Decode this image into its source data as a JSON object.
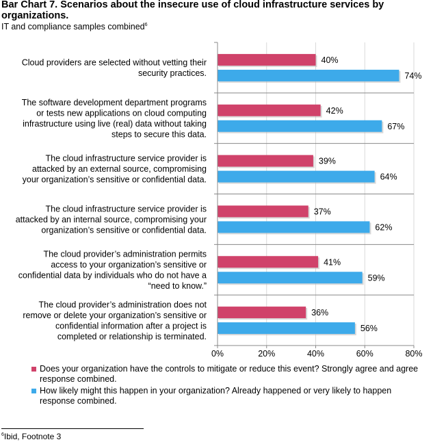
{
  "header": {
    "title": "Bar Chart 7. Scenarios about the insecure use of cloud infrastructure services by organizations.",
    "subtitle": "IT and compliance samples combined",
    "subtitle_note": "6"
  },
  "footnote": {
    "marker": "6",
    "text": "Ibid, Footnote 3"
  },
  "colors": {
    "series1": "#d0426a",
    "series2": "#3daaea"
  },
  "chart_data": {
    "type": "bar",
    "orientation": "horizontal",
    "title": "Bar Chart 7. Scenarios about the insecure use of cloud infrastructure services by organizations.",
    "subtitle": "IT and compliance samples combined",
    "categories": [
      [
        "Cloud providers are selected without vetting their",
        "security practices."
      ],
      [
        "The software development department programs",
        "or tests new applications on cloud computing",
        "infrastructure using live (real) data without taking",
        "steps to secure this data."
      ],
      [
        "The cloud infrastructure service provider is",
        "attacked by an external source, compromising",
        "your organization’s sensitive or confidential data."
      ],
      [
        "The cloud infrastructure service provider is",
        "attacked by an internal source, compromising your",
        "organization’s sensitive or confidential data."
      ],
      [
        "The cloud provider’s administration permits",
        "access to your organization’s sensitive or",
        "confidential data by individuals who do not have a",
        "“need to know.”"
      ],
      [
        "The cloud provider’s administration does not",
        "remove or delete your organization’s sensitive or",
        "confidential information after a project is",
        "completed or relationship is terminated."
      ]
    ],
    "series": [
      {
        "name": "Does your organization have the controls to mitigate or reduce this event? Strongly agree and agree response combined.",
        "values": [
          40,
          42,
          39,
          37,
          41,
          36
        ],
        "labels": [
          "40%",
          "42%",
          "39%",
          "37%",
          "41%",
          "36%"
        ],
        "color": "#d0426a"
      },
      {
        "name": "How likely might this happen in your organization? Already happened or very likely to happen response combined.",
        "values": [
          74,
          67,
          64,
          62,
          59,
          56
        ],
        "labels": [
          "74%",
          "67%",
          "64%",
          "62%",
          "59%",
          "56%"
        ],
        "color": "#3daaea"
      }
    ],
    "xlim": [
      0,
      80
    ],
    "xticks": [
      0,
      20,
      40,
      60,
      80
    ],
    "xtick_labels": [
      "0%",
      "20%",
      "40%",
      "60%",
      "80%"
    ],
    "grid": true,
    "legend_position": "bottom"
  }
}
